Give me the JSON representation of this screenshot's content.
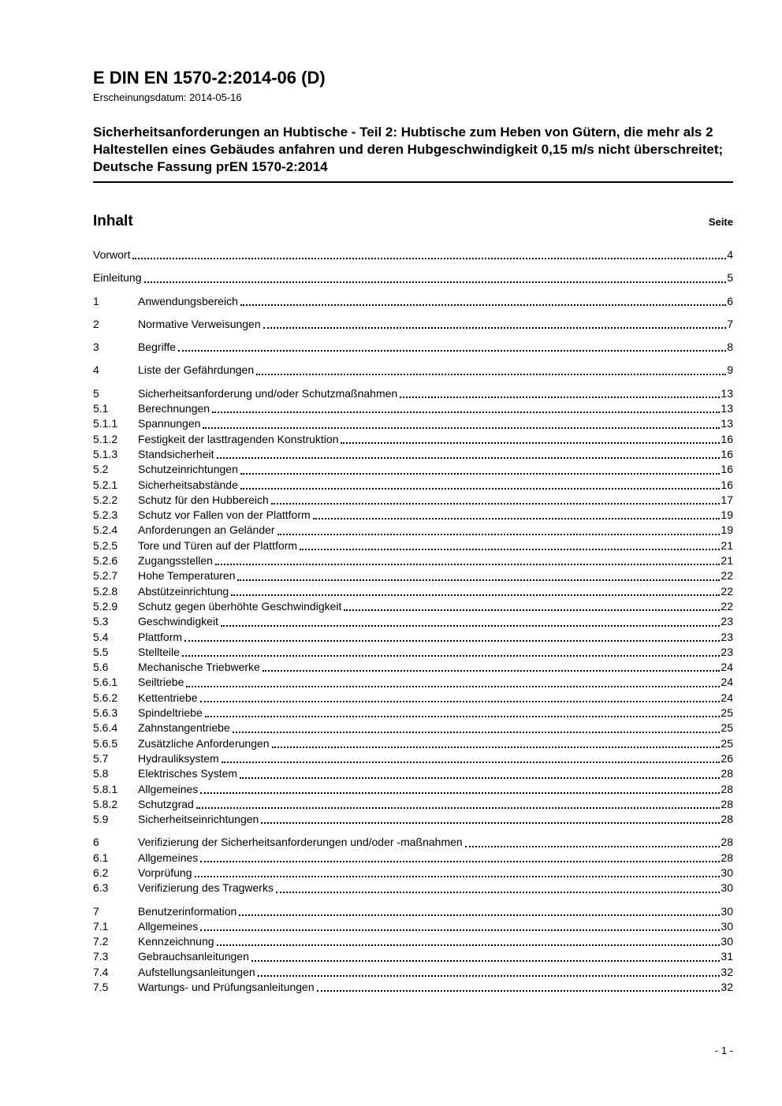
{
  "colors": {
    "text": "#000000",
    "page_background": "#ffffff"
  },
  "header": {
    "doc_number": "E DIN EN 1570-2:2014-06 (D)",
    "publication_date": "Erscheinungsdatum: 2014-05-16",
    "title": "Sicherheitsanforderungen an Hubtische - Teil 2: Hubtische zum Heben von Gütern, die mehr als 2 Haltestellen eines Gebäudes anfahren und deren Hubgeschwindigkeit 0,15 m/s nicht überschreitet; Deutsche Fassung prEN 1570-2:2014"
  },
  "toc": {
    "heading": "Inhalt",
    "page_label": "Seite",
    "entries": [
      {
        "num": "",
        "title": "Vorwort",
        "page": "4"
      },
      {
        "num": "",
        "title": "Einleitung",
        "page": "5"
      },
      {
        "num": "1",
        "title": "Anwendungsbereich",
        "page": "6"
      },
      {
        "num": "2",
        "title": "Normative Verweisungen",
        "page": "7"
      },
      {
        "num": "3",
        "title": "Begriffe",
        "page": "8"
      },
      {
        "num": "4",
        "title": "Liste der Gefährdungen",
        "page": "9"
      },
      {
        "num": "5",
        "title": "Sicherheitsanforderung und/oder Schutzmaßnahmen",
        "page": "13"
      },
      {
        "num": "5.1",
        "title": "Berechnungen",
        "page": "13"
      },
      {
        "num": "5.1.1",
        "title": "Spannungen",
        "page": "13"
      },
      {
        "num": "5.1.2",
        "title": "Festigkeit der lasttragenden Konstruktion",
        "page": "16"
      },
      {
        "num": "5.1.3",
        "title": "Standsicherheit",
        "page": "16"
      },
      {
        "num": "5.2",
        "title": "Schutzeinrichtungen",
        "page": "16"
      },
      {
        "num": "5.2.1",
        "title": "Sicherheitsabstände",
        "page": "16"
      },
      {
        "num": "5.2.2",
        "title": "Schutz für den Hubbereich",
        "page": "17"
      },
      {
        "num": "5.2.3",
        "title": "Schutz vor Fallen von der Plattform",
        "page": "19"
      },
      {
        "num": "5.2.4",
        "title": "Anforderungen an Geländer",
        "page": "19"
      },
      {
        "num": "5.2.5",
        "title": "Tore und Türen auf der Plattform",
        "page": "21"
      },
      {
        "num": "5.2.6",
        "title": "Zugangsstellen",
        "page": "21"
      },
      {
        "num": "5.2.7",
        "title": "Hohe Temperaturen",
        "page": "22"
      },
      {
        "num": "5.2.8",
        "title": "Abstützeinrichtung",
        "page": "22"
      },
      {
        "num": "5.2.9",
        "title": "Schutz gegen überhöhte Geschwindigkeit",
        "page": "22"
      },
      {
        "num": "5.3",
        "title": "Geschwindigkeit",
        "page": "23"
      },
      {
        "num": "5.4",
        "title": "Plattform",
        "page": "23"
      },
      {
        "num": "5.5",
        "title": "Stellteile",
        "page": "23"
      },
      {
        "num": "5.6",
        "title": "Mechanische Triebwerke",
        "page": "24"
      },
      {
        "num": "5.6.1",
        "title": "Seiltriebe",
        "page": "24"
      },
      {
        "num": "5.6.2",
        "title": "Kettentriebe",
        "page": "24"
      },
      {
        "num": "5.6.3",
        "title": "Spindeltriebe",
        "page": "25"
      },
      {
        "num": "5.6.4",
        "title": "Zahnstangentriebe",
        "page": "25"
      },
      {
        "num": "5.6.5",
        "title": "Zusätzliche Anforderungen",
        "page": "25"
      },
      {
        "num": "5.7",
        "title": "Hydrauliksystem",
        "page": "26"
      },
      {
        "num": "5.8",
        "title": "Elektrisches System",
        "page": "28"
      },
      {
        "num": "5.8.1",
        "title": "Allgemeines",
        "page": "28"
      },
      {
        "num": "5.8.2",
        "title": "Schutzgrad",
        "page": "28"
      },
      {
        "num": "5.9",
        "title": "Sicherheitseinrichtungen",
        "page": "28"
      },
      {
        "num": "6",
        "title": "Verifizierung der Sicherheitsanforderungen und/oder -maßnahmen",
        "page": "28"
      },
      {
        "num": "6.1",
        "title": "Allgemeines",
        "page": "28"
      },
      {
        "num": "6.2",
        "title": "Vorprüfung",
        "page": "30"
      },
      {
        "num": "6.3",
        "title": "Verifizierung des Tragwerks",
        "page": "30"
      },
      {
        "num": "7",
        "title": "Benutzerinformation",
        "page": "30"
      },
      {
        "num": "7.1",
        "title": "Allgemeines",
        "page": "30"
      },
      {
        "num": "7.2",
        "title": "Kennzeichnung",
        "page": "30"
      },
      {
        "num": "7.3",
        "title": "Gebrauchsanleitungen",
        "page": "31"
      },
      {
        "num": "7.4",
        "title": "Aufstellungsanleitungen",
        "page": "32"
      },
      {
        "num": "7.5",
        "title": "Wartungs- und Prüfungsanleitungen",
        "page": "32"
      }
    ]
  },
  "footer": {
    "page_indicator": "- 1 -"
  }
}
